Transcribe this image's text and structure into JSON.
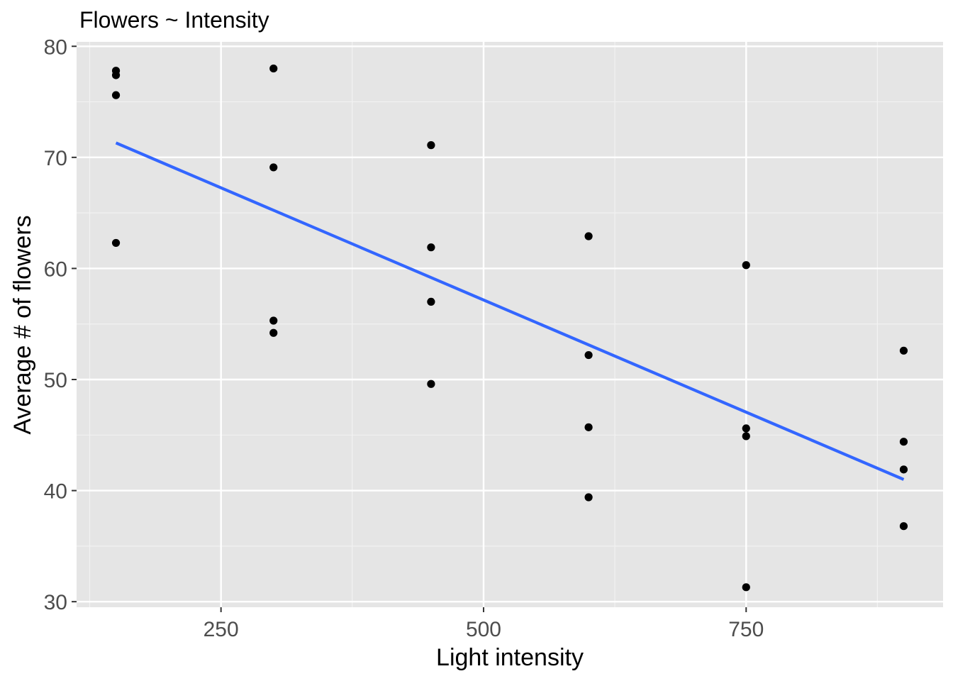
{
  "chart_data": {
    "type": "scatter",
    "title": "Flowers ~ Intensity",
    "xlabel": "Light intensity",
    "ylabel": "Average # of flowers",
    "xlim": [
      112.5,
      937.5
    ],
    "ylim": [
      29.5,
      80.4
    ],
    "x_ticks": [
      250,
      500,
      750
    ],
    "x_tick_labels": [
      "250",
      "500",
      "750"
    ],
    "y_ticks": [
      30,
      40,
      50,
      60,
      70,
      80
    ],
    "y_tick_labels": [
      "30",
      "40",
      "50",
      "60",
      "70",
      "80"
    ],
    "grid": true,
    "legend": "none",
    "points": [
      {
        "x": 150,
        "y": 62.3
      },
      {
        "x": 150,
        "y": 77.4
      },
      {
        "x": 150,
        "y": 77.8
      },
      {
        "x": 150,
        "y": 75.6
      },
      {
        "x": 300,
        "y": 55.3
      },
      {
        "x": 300,
        "y": 54.2
      },
      {
        "x": 300,
        "y": 69.1
      },
      {
        "x": 300,
        "y": 78.0
      },
      {
        "x": 450,
        "y": 49.6
      },
      {
        "x": 450,
        "y": 61.9
      },
      {
        "x": 450,
        "y": 57.0
      },
      {
        "x": 450,
        "y": 71.1
      },
      {
        "x": 600,
        "y": 39.4
      },
      {
        "x": 600,
        "y": 45.7
      },
      {
        "x": 600,
        "y": 52.2
      },
      {
        "x": 600,
        "y": 62.9
      },
      {
        "x": 750,
        "y": 31.3
      },
      {
        "x": 750,
        "y": 44.9
      },
      {
        "x": 750,
        "y": 45.6
      },
      {
        "x": 750,
        "y": 60.3
      },
      {
        "x": 900,
        "y": 36.8
      },
      {
        "x": 900,
        "y": 41.9
      },
      {
        "x": 900,
        "y": 44.4
      },
      {
        "x": 900,
        "y": 52.6
      }
    ],
    "fit_line": {
      "method": "lm",
      "x": [
        150,
        900
      ],
      "y": [
        71.3,
        41.0
      ],
      "color": "#3366ff"
    },
    "colors": {
      "panel_background": "#e5e5e5",
      "grid_major": "#ffffff",
      "grid_minor": "#f2f2f2",
      "points": "#000000",
      "tick_label": "#4d4d4d",
      "tick_mark": "#333333"
    }
  }
}
